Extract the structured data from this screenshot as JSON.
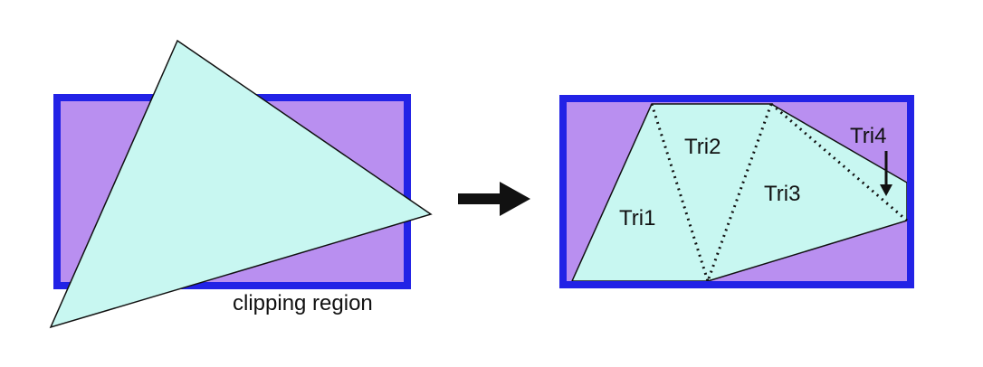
{
  "labels": {
    "clipping_region": "clipping region",
    "tri1": "Tri1",
    "tri2": "Tri2",
    "tri3": "Tri3",
    "tri4": "Tri4"
  },
  "colors": {
    "region_fill": "#b98ff0",
    "region_border": "#2222e6",
    "triangle_fill": "#c8f7f1",
    "outline": "#111111"
  }
}
